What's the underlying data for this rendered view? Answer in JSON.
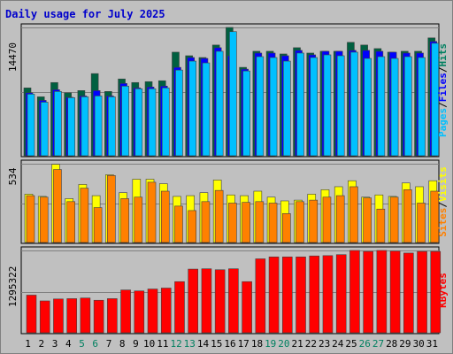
{
  "chart_data": {
    "type": "bar",
    "title": "Daily usage for July 2025",
    "categories": [
      "1",
      "2",
      "3",
      "4",
      "5",
      "6",
      "7",
      "8",
      "9",
      "10",
      "11",
      "12",
      "13",
      "14",
      "15",
      "16",
      "17",
      "18",
      "19",
      "20",
      "21",
      "22",
      "23",
      "24",
      "25",
      "26",
      "27",
      "28",
      "29",
      "30",
      "31"
    ],
    "weekend_day_color": "#008060",
    "weekday_color": "#000000",
    "title_color": "#0000cc",
    "panels": [
      {
        "id": "pages-files-hits",
        "max_label": "14470",
        "ylim": [
          0,
          14470
        ],
        "legend": [
          {
            "text": "Pages",
            "color": "#00c0ff"
          },
          {
            "text": "/",
            "color": "#000000"
          },
          {
            "text": "Files",
            "color": "#0000ff"
          },
          {
            "text": "/",
            "color": "#000000"
          },
          {
            "text": "Hits",
            "color": "#008060"
          }
        ],
        "series": [
          {
            "name": "Hits",
            "color": "#006040",
            "values": [
              7700,
              6700,
              8300,
              7150,
              7400,
              9300,
              7300,
              8700,
              8300,
              8400,
              8500,
              11700,
              11300,
              11100,
              12500,
              14470,
              10000,
              11800,
              11800,
              11500,
              12200,
              11600,
              11800,
              11800,
              12800,
              12500,
              12100,
              11700,
              11800,
              11800,
              13300
            ]
          },
          {
            "name": "Files",
            "color": "#0000ff",
            "values": [
              7150,
              6300,
              7500,
              6650,
              6800,
              7400,
              6800,
              8200,
              7700,
              7800,
              7900,
              10000,
              11100,
              11000,
              12200,
              11300,
              9800,
              11600,
              11600,
              11300,
              11900,
              11400,
              11800,
              11800,
              11900,
              11900,
              11800,
              11700,
              11600,
              11600,
              12900
            ]
          },
          {
            "name": "Pages",
            "color": "#00c0ff",
            "values": [
              7000,
              6100,
              7300,
              6600,
              6700,
              6800,
              6700,
              7900,
              7600,
              7600,
              7700,
              9700,
              10700,
              10500,
              11800,
              14000,
              9600,
              11200,
              11100,
              10700,
              11600,
              11100,
              11400,
              11300,
              11700,
              11000,
              11200,
              11000,
              11200,
              11100,
              12700
            ]
          }
        ]
      },
      {
        "id": "visits-sites",
        "max_label": "534",
        "ylim": [
          0,
          534
        ],
        "legend": [
          {
            "text": "Sites",
            "color": "#ff8000"
          },
          {
            "text": "/",
            "color": "#000000"
          },
          {
            "text": "Visits",
            "color": "#ffff00"
          }
        ],
        "series": [
          {
            "name": "Visits",
            "color": "#ffff00",
            "values": [
              330,
              315,
              530,
              300,
              395,
              320,
              460,
              340,
              430,
              430,
              400,
              315,
              320,
              340,
              425,
              325,
              320,
              350,
              310,
              285,
              290,
              330,
              360,
              380,
              420,
              310,
              325,
              315,
              405,
              380,
              420
            ]
          },
          {
            "name": "Sites",
            "color": "#ff8000",
            "values": [
              320,
              310,
              495,
              280,
              370,
              240,
              455,
              300,
              310,
              410,
              350,
              250,
              220,
              280,
              355,
              270,
              275,
              280,
              270,
              200,
              280,
              290,
              310,
              320,
              380,
              305,
              230,
              310,
              360,
              270,
              350
            ]
          }
        ]
      },
      {
        "id": "kbytes",
        "max_label": "1295322",
        "ylim": [
          0,
          1295322
        ],
        "legend": [
          {
            "text": "KBytes",
            "color": "#ff0000"
          }
        ],
        "series": [
          {
            "name": "KBytes",
            "color": "#ff0000",
            "values": [
              600000,
              510000,
              540000,
              545000,
              555000,
              520000,
              545000,
              680000,
              665000,
              695000,
              710000,
              810000,
              1005000,
              1010000,
              995000,
              1010000,
              810000,
              1165000,
              1195000,
              1195000,
              1195000,
              1210000,
              1215000,
              1230000,
              1295322,
              1280000,
              1295322,
              1285000,
              1255000,
              1280000,
              1280000
            ]
          }
        ]
      }
    ]
  }
}
